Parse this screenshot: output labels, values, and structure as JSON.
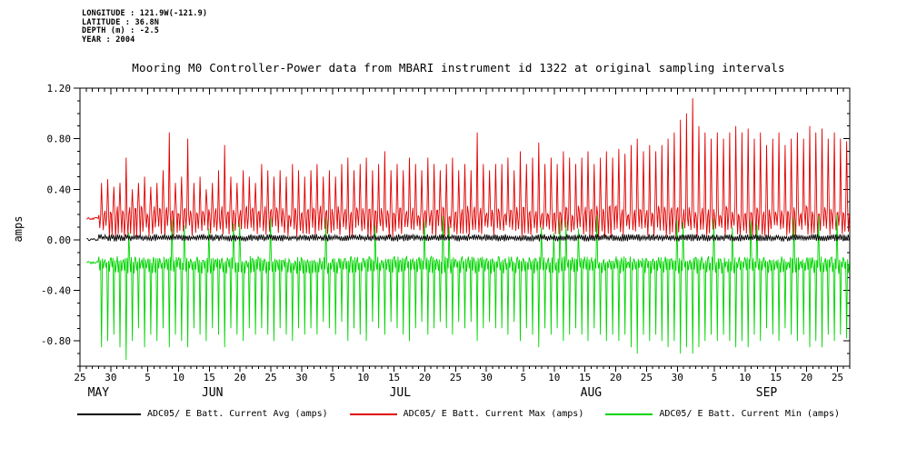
{
  "metadata": {
    "lines": [
      "LONGITUDE : 121.9W(-121.9)",
      "LATITUDE : 36.8N",
      "DEPTH (m) : -2.5",
      "YEAR : 2004"
    ]
  },
  "chart_data": {
    "type": "line",
    "title": "Mooring M0 Controller-Power data from MBARI instrument id 1322 at original sampling intervals",
    "xlabel": "",
    "ylabel": "amps",
    "ylim": [
      -1.0,
      1.2
    ],
    "y_minor_step": 0.1,
    "y_ticks": [
      {
        "label": "1.20",
        "value": 1.2
      },
      {
        "label": "0.80",
        "value": 0.8
      },
      {
        "label": "0.40",
        "value": 0.4
      },
      {
        "label": "0.00",
        "value": 0.0
      },
      {
        "label": "-0.40",
        "value": -0.4
      },
      {
        "label": "-0.80",
        "value": -0.8
      }
    ],
    "x_axis": {
      "start_date": "2004-05-25",
      "end_date": "2004-09-26",
      "total_days": 125,
      "minor_step_days": 1,
      "data_start_day": 1,
      "flat_days_until": 3,
      "major_ticks": [
        {
          "label": "25",
          "day": 0
        },
        {
          "label": "30",
          "day": 5
        },
        {
          "label": "5",
          "day": 11
        },
        {
          "label": "10",
          "day": 16
        },
        {
          "label": "15",
          "day": 21
        },
        {
          "label": "20",
          "day": 26
        },
        {
          "label": "25",
          "day": 31
        },
        {
          "label": "30",
          "day": 36
        },
        {
          "label": "5",
          "day": 41
        },
        {
          "label": "10",
          "day": 46
        },
        {
          "label": "15",
          "day": 51
        },
        {
          "label": "20",
          "day": 56
        },
        {
          "label": "25",
          "day": 61
        },
        {
          "label": "30",
          "day": 66
        },
        {
          "label": "5",
          "day": 72
        },
        {
          "label": "10",
          "day": 77
        },
        {
          "label": "15",
          "day": 82
        },
        {
          "label": "20",
          "day": 87
        },
        {
          "label": "25",
          "day": 92
        },
        {
          "label": "30",
          "day": 97
        },
        {
          "label": "5",
          "day": 103
        },
        {
          "label": "10",
          "day": 108
        },
        {
          "label": "15",
          "day": 113
        },
        {
          "label": "20",
          "day": 118
        },
        {
          "label": "25",
          "day": 123
        }
      ],
      "month_labels": [
        {
          "label": "MAY",
          "day": 3
        },
        {
          "label": "JUN",
          "day": 21.5
        },
        {
          "label": "JUL",
          "day": 52
        },
        {
          "label": "AUG",
          "day": 83
        },
        {
          "label": "SEP",
          "day": 111.5
        }
      ]
    },
    "series": [
      {
        "name": "ADC05/ E Batt. Current Avg (amps)",
        "color": "#000000",
        "band": [
          -0.012,
          0.045
        ],
        "start_value": 0.0,
        "constant_value_approx": 0.02,
        "daily_extremes": null
      },
      {
        "name": "ADC05/ E Batt. Current Max (amps)",
        "color": "#e00000",
        "band": [
          0.02,
          0.27
        ],
        "start_value": 0.17,
        "daily_extremes": [
          0.17,
          0.18,
          0.3,
          0.45,
          0.48,
          0.42,
          0.45,
          0.65,
          0.4,
          0.45,
          0.5,
          0.42,
          0.45,
          0.55,
          0.85,
          0.45,
          0.5,
          0.8,
          0.45,
          0.5,
          0.4,
          0.45,
          0.55,
          0.75,
          0.5,
          0.45,
          0.55,
          0.5,
          0.45,
          0.6,
          0.55,
          0.5,
          0.55,
          0.5,
          0.6,
          0.55,
          0.5,
          0.55,
          0.6,
          0.5,
          0.55,
          0.5,
          0.6,
          0.65,
          0.55,
          0.6,
          0.65,
          0.55,
          0.6,
          0.7,
          0.55,
          0.6,
          0.55,
          0.65,
          0.6,
          0.55,
          0.65,
          0.6,
          0.55,
          0.6,
          0.65,
          0.55,
          0.6,
          0.55,
          0.85,
          0.6,
          0.55,
          0.6,
          0.6,
          0.65,
          0.55,
          0.7,
          0.6,
          0.65,
          0.77,
          0.6,
          0.65,
          0.6,
          0.7,
          0.65,
          0.6,
          0.65,
          0.7,
          0.6,
          0.65,
          0.7,
          0.65,
          0.72,
          0.68,
          0.75,
          0.8,
          0.7,
          0.75,
          0.7,
          0.75,
          0.8,
          0.85,
          0.95,
          1.0,
          1.12,
          0.9,
          0.85,
          0.8,
          0.85,
          0.8,
          0.85,
          0.9,
          0.85,
          0.88,
          0.8,
          0.85,
          0.75,
          0.8,
          0.85,
          0.75,
          0.8,
          0.85,
          0.8,
          0.9,
          0.85,
          0.88,
          0.8,
          0.85,
          0.8,
          0.78
        ]
      },
      {
        "name": "ADC05/ E Batt. Current Min (amps)",
        "color": "#00d400",
        "band": [
          -0.27,
          -0.13
        ],
        "start_value": -0.18,
        "up_spike_range": [
          0.05,
          0.2
        ],
        "daily_extremes": [
          -0.18,
          -0.18,
          -0.45,
          -0.85,
          -0.8,
          -0.75,
          -0.85,
          -0.95,
          -0.8,
          -0.7,
          -0.85,
          -0.75,
          -0.8,
          -0.7,
          -0.85,
          -0.75,
          -0.8,
          -0.85,
          -0.7,
          -0.75,
          -0.8,
          -0.7,
          -0.75,
          -0.85,
          -0.7,
          -0.75,
          -0.8,
          -0.7,
          -0.75,
          -0.7,
          -0.75,
          -0.8,
          -0.7,
          -0.75,
          -0.8,
          -0.7,
          -0.75,
          -0.7,
          -0.75,
          -0.65,
          -0.7,
          -0.75,
          -0.65,
          -0.8,
          -0.7,
          -0.75,
          -0.8,
          -0.65,
          -0.7,
          -0.75,
          -0.65,
          -0.7,
          -0.75,
          -0.8,
          -0.7,
          -0.65,
          -0.75,
          -0.7,
          -0.65,
          -0.7,
          -0.75,
          -0.65,
          -0.7,
          -0.65,
          -0.8,
          -0.7,
          -0.65,
          -0.7,
          -0.7,
          -0.75,
          -0.65,
          -0.8,
          -0.7,
          -0.75,
          -0.85,
          -0.7,
          -0.75,
          -0.7,
          -0.8,
          -0.75,
          -0.7,
          -0.75,
          -0.8,
          -0.7,
          -0.75,
          -0.8,
          -0.75,
          -0.8,
          -0.75,
          -0.85,
          -0.9,
          -0.75,
          -0.8,
          -0.75,
          -0.8,
          -0.85,
          -0.8,
          -0.9,
          -0.85,
          -0.9,
          -0.85,
          -0.8,
          -0.75,
          -0.8,
          -0.75,
          -0.8,
          -0.85,
          -0.8,
          -0.85,
          -0.75,
          -0.8,
          -0.7,
          -0.75,
          -0.8,
          -0.7,
          -0.75,
          -0.8,
          -0.75,
          -0.85,
          -0.8,
          -0.85,
          -0.75,
          -0.8,
          -0.75,
          -0.78
        ]
      }
    ]
  },
  "legend": {
    "items": [
      {
        "label": "ADC05/ E Batt. Current Avg (amps)",
        "color": "#000000"
      },
      {
        "label": "ADC05/ E Batt. Current Max (amps)",
        "color": "#e00000"
      },
      {
        "label": "ADC05/ E Batt. Current Min (amps)",
        "color": "#00d400"
      }
    ]
  }
}
